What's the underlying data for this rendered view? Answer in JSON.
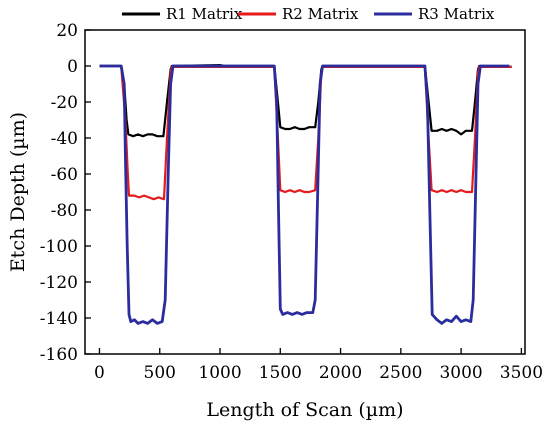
{
  "chart_data": {
    "type": "line",
    "xlabel": "Length of Scan (µm)",
    "ylabel": "Etch Depth (µm)",
    "xlim": [
      -120,
      3530
    ],
    "ylim": [
      -160,
      20
    ],
    "xticks": [
      0,
      500,
      1000,
      1500,
      2000,
      2500,
      3000,
      3500
    ],
    "yticks": [
      20,
      0,
      -20,
      -40,
      -60,
      -80,
      -100,
      -120,
      -140,
      -160
    ],
    "grid": false,
    "legend_position": "top",
    "series": [
      {
        "name": "R1 Matrix",
        "color": "#000000",
        "values": [
          [
            0,
            0
          ],
          [
            180,
            0
          ],
          [
            205,
            -10
          ],
          [
            225,
            -30
          ],
          [
            240,
            -38
          ],
          [
            280,
            -39
          ],
          [
            320,
            -38
          ],
          [
            360,
            -39
          ],
          [
            400,
            -38
          ],
          [
            440,
            -38
          ],
          [
            480,
            -39
          ],
          [
            530,
            -39
          ],
          [
            560,
            -20
          ],
          [
            590,
            -2
          ],
          [
            600,
            0
          ],
          [
            1000,
            0.5
          ],
          [
            1040,
            0
          ],
          [
            1450,
            0
          ],
          [
            1480,
            -20
          ],
          [
            1500,
            -34
          ],
          [
            1540,
            -35
          ],
          [
            1580,
            -35
          ],
          [
            1620,
            -34
          ],
          [
            1660,
            -35
          ],
          [
            1700,
            -35
          ],
          [
            1740,
            -34
          ],
          [
            1790,
            -34
          ],
          [
            1815,
            -20
          ],
          [
            1840,
            -2
          ],
          [
            1850,
            0
          ],
          [
            2700,
            0
          ],
          [
            2730,
            -20
          ],
          [
            2755,
            -36
          ],
          [
            2800,
            -36
          ],
          [
            2840,
            -35
          ],
          [
            2880,
            -36
          ],
          [
            2920,
            -35
          ],
          [
            2960,
            -36
          ],
          [
            3000,
            -38
          ],
          [
            3040,
            -36
          ],
          [
            3090,
            -36
          ],
          [
            3115,
            -20
          ],
          [
            3140,
            -2
          ],
          [
            3150,
            0
          ],
          [
            3420,
            -0.5
          ]
        ]
      },
      {
        "name": "R2 Matrix",
        "color": "#e41a1c",
        "values": [
          [
            0,
            0
          ],
          [
            180,
            0
          ],
          [
            215,
            -30
          ],
          [
            235,
            -60
          ],
          [
            245,
            -72
          ],
          [
            290,
            -72
          ],
          [
            330,
            -73
          ],
          [
            370,
            -72
          ],
          [
            410,
            -73
          ],
          [
            450,
            -74
          ],
          [
            490,
            -73
          ],
          [
            535,
            -74
          ],
          [
            560,
            -40
          ],
          [
            590,
            -4
          ],
          [
            600,
            -0.5
          ],
          [
            1450,
            -0.5
          ],
          [
            1480,
            -40
          ],
          [
            1500,
            -69
          ],
          [
            1540,
            -70
          ],
          [
            1580,
            -69
          ],
          [
            1620,
            -70
          ],
          [
            1660,
            -69
          ],
          [
            1700,
            -70
          ],
          [
            1740,
            -70
          ],
          [
            1790,
            -69
          ],
          [
            1815,
            -40
          ],
          [
            1840,
            -4
          ],
          [
            1850,
            -0.5
          ],
          [
            2700,
            -0.5
          ],
          [
            2730,
            -40
          ],
          [
            2755,
            -69
          ],
          [
            2800,
            -70
          ],
          [
            2840,
            -69
          ],
          [
            2880,
            -70
          ],
          [
            2920,
            -69
          ],
          [
            2960,
            -70
          ],
          [
            3000,
            -69
          ],
          [
            3040,
            -70
          ],
          [
            3090,
            -70
          ],
          [
            3115,
            -40
          ],
          [
            3140,
            -4
          ],
          [
            3150,
            -0.5
          ],
          [
            3420,
            -0.5
          ]
        ]
      },
      {
        "name": "R3 Matrix",
        "color": "#2b2d9e",
        "values": [
          [
            0,
            0
          ],
          [
            180,
            0
          ],
          [
            205,
            -10
          ],
          [
            215,
            -50
          ],
          [
            230,
            -100
          ],
          [
            245,
            -138
          ],
          [
            260,
            -142
          ],
          [
            290,
            -141
          ],
          [
            320,
            -143
          ],
          [
            360,
            -142
          ],
          [
            400,
            -143
          ],
          [
            440,
            -141
          ],
          [
            480,
            -143
          ],
          [
            520,
            -142
          ],
          [
            545,
            -130
          ],
          [
            570,
            -60
          ],
          [
            590,
            -10
          ],
          [
            610,
            0
          ],
          [
            1450,
            0
          ],
          [
            1470,
            -20
          ],
          [
            1485,
            -80
          ],
          [
            1500,
            -135
          ],
          [
            1520,
            -138
          ],
          [
            1560,
            -137
          ],
          [
            1600,
            -138
          ],
          [
            1640,
            -137
          ],
          [
            1680,
            -138
          ],
          [
            1720,
            -137
          ],
          [
            1770,
            -137
          ],
          [
            1790,
            -130
          ],
          [
            1810,
            -70
          ],
          [
            1830,
            -10
          ],
          [
            1850,
            0
          ],
          [
            2700,
            0
          ],
          [
            2720,
            -20
          ],
          [
            2740,
            -80
          ],
          [
            2760,
            -138
          ],
          [
            2800,
            -141
          ],
          [
            2840,
            -143
          ],
          [
            2880,
            -141
          ],
          [
            2920,
            -142
          ],
          [
            2960,
            -139
          ],
          [
            3000,
            -142
          ],
          [
            3040,
            -141
          ],
          [
            3080,
            -142
          ],
          [
            3100,
            -130
          ],
          [
            3120,
            -70
          ],
          [
            3140,
            -10
          ],
          [
            3160,
            0
          ],
          [
            3400,
            0
          ]
        ]
      }
    ]
  }
}
